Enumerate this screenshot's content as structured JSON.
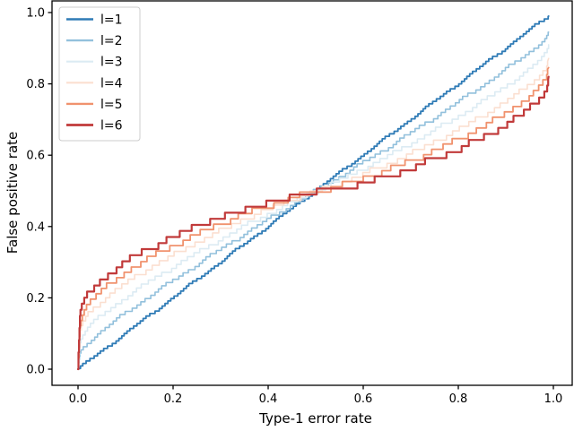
{
  "figure": {
    "background": "#ffffff",
    "axis_color": "#000000",
    "legend_border_color": "#cccccc",
    "legend_background": "#ffffff"
  },
  "chart_data": {
    "type": "line",
    "title": "",
    "xlabel": "Type-1 error rate",
    "ylabel": "False positive rate",
    "x_ticks": [
      0.0,
      0.2,
      0.4,
      0.6,
      0.8,
      1.0
    ],
    "y_ticks": [
      0.0,
      0.2,
      0.4,
      0.6,
      0.8,
      1.0
    ],
    "xlim": [
      -0.055,
      1.04
    ],
    "ylim": [
      -0.045,
      1.033
    ],
    "grid": false,
    "legend_position": "upper-left",
    "x_deciles": [
      0.0,
      0.1,
      0.2,
      0.3,
      0.4,
      0.5,
      0.6,
      0.7,
      0.8,
      0.9,
      1.0
    ],
    "base_anchors": [
      [
        0.0,
        0.0
      ],
      [
        0.004,
        0.15
      ],
      [
        0.01,
        0.18
      ],
      [
        0.02,
        0.21
      ],
      [
        0.05,
        0.25
      ],
      [
        0.1,
        0.3
      ],
      [
        0.15,
        0.34
      ],
      [
        0.2,
        0.37
      ],
      [
        0.25,
        0.4
      ],
      [
        0.3,
        0.425
      ],
      [
        0.35,
        0.45
      ],
      [
        0.4,
        0.468
      ],
      [
        0.46,
        0.487
      ],
      [
        0.52,
        0.5
      ],
      [
        0.58,
        0.515
      ],
      [
        0.65,
        0.54
      ],
      [
        0.72,
        0.572
      ],
      [
        0.8,
        0.615
      ],
      [
        0.86,
        0.655
      ],
      [
        0.9,
        0.685
      ],
      [
        0.94,
        0.72
      ],
      [
        0.97,
        0.755
      ],
      [
        0.985,
        0.785
      ],
      [
        0.99,
        0.82
      ]
    ],
    "series": [
      {
        "name": "l=1",
        "label": "l=1",
        "color": "#2f7bb6",
        "weight": 0.0,
        "linewidth": 1.8,
        "step": 0.007,
        "noise": 0.004,
        "phase": 0.2,
        "values": [
          0.0,
          0.1,
          0.2,
          0.3,
          0.4,
          0.5,
          0.6,
          0.7,
          0.8,
          0.9,
          0.99
        ]
      },
      {
        "name": "l=2",
        "label": "l=2",
        "color": "#92c0dc",
        "weight": 0.28,
        "linewidth": 1.6,
        "step": 0.009,
        "noise": 0.005,
        "phase": 0.5,
        "values": [
          0.0,
          0.156,
          0.248,
          0.335,
          0.419,
          0.499,
          0.578,
          0.662,
          0.748,
          0.84,
          0.942
        ]
      },
      {
        "name": "l=3",
        "label": "l=3",
        "color": "#dcebf3",
        "weight": 0.5,
        "linewidth": 1.6,
        "step": 0.011,
        "noise": 0.005,
        "phase": 0.8,
        "values": [
          0.0,
          0.2,
          0.285,
          0.363,
          0.434,
          0.498,
          0.561,
          0.631,
          0.708,
          0.793,
          0.905
        ]
      },
      {
        "name": "l=4",
        "label": "l=4",
        "color": "#fbdfd0",
        "weight": 0.7,
        "linewidth": 1.6,
        "step": 0.013,
        "noise": 0.005,
        "phase": 0.1,
        "values": [
          0.0,
          0.24,
          0.319,
          0.388,
          0.448,
          0.497,
          0.546,
          0.604,
          0.671,
          0.75,
          0.871
        ]
      },
      {
        "name": "l=5",
        "label": "l=5",
        "color": "#f0926e",
        "weight": 0.85,
        "linewidth": 1.8,
        "step": 0.015,
        "noise": 0.005,
        "phase": 0.4,
        "values": [
          0.0,
          0.27,
          0.345,
          0.406,
          0.458,
          0.496,
          0.534,
          0.584,
          0.643,
          0.715,
          0.846
        ]
      },
      {
        "name": "l=6",
        "label": "l=6",
        "color": "#c13a3a",
        "weight": 1.0,
        "linewidth": 2.2,
        "step": 0.017,
        "noise": 0.006,
        "phase": 0.7,
        "values": [
          0.0,
          0.3,
          0.37,
          0.425,
          0.468,
          0.496,
          0.522,
          0.563,
          0.615,
          0.685,
          0.82
        ]
      }
    ]
  }
}
